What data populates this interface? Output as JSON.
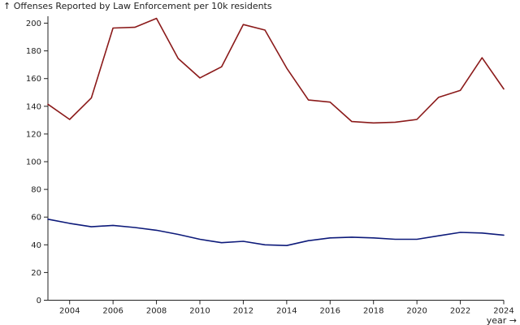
{
  "chart_data": {
    "type": "line",
    "ylabel": "↑ Offenses Reported by Law Enforcement per 10k residents",
    "xlabel": "year →",
    "xlim": [
      2003,
      2024
    ],
    "ylim": [
      0,
      205
    ],
    "x_ticks": [
      "2004",
      "2006",
      "2008",
      "2010",
      "2012",
      "2014",
      "2016",
      "2018",
      "2020",
      "2022",
      "2024"
    ],
    "y_ticks": [
      "0",
      "20",
      "40",
      "60",
      "80",
      "100",
      "120",
      "140",
      "160",
      "180",
      "200"
    ],
    "grid": false,
    "legend": "none",
    "x": [
      2003,
      2004,
      2005,
      2006,
      2007,
      2008,
      2009,
      2010,
      2011,
      2012,
      2013,
      2014,
      2015,
      2016,
      2017,
      2018,
      2019,
      2020,
      2021,
      2022,
      2023,
      2024
    ],
    "series": [
      {
        "color": "#8b1a1a",
        "values": [
          141.5,
          130.5,
          146,
          196.5,
          197,
          203.5,
          174.5,
          160.5,
          168.5,
          199,
          195,
          167.5,
          144.5,
          143,
          129,
          128,
          128.5,
          130.5,
          146.5,
          151.5,
          175,
          152.5
        ]
      },
      {
        "color": "#0d1a7a",
        "values": [
          58.5,
          55.5,
          53,
          54,
          52.5,
          50.5,
          47.5,
          44,
          41.5,
          42.5,
          40,
          39.5,
          43,
          45,
          45.5,
          45,
          44,
          44,
          46.5,
          49,
          48.5,
          47
        ]
      }
    ]
  }
}
